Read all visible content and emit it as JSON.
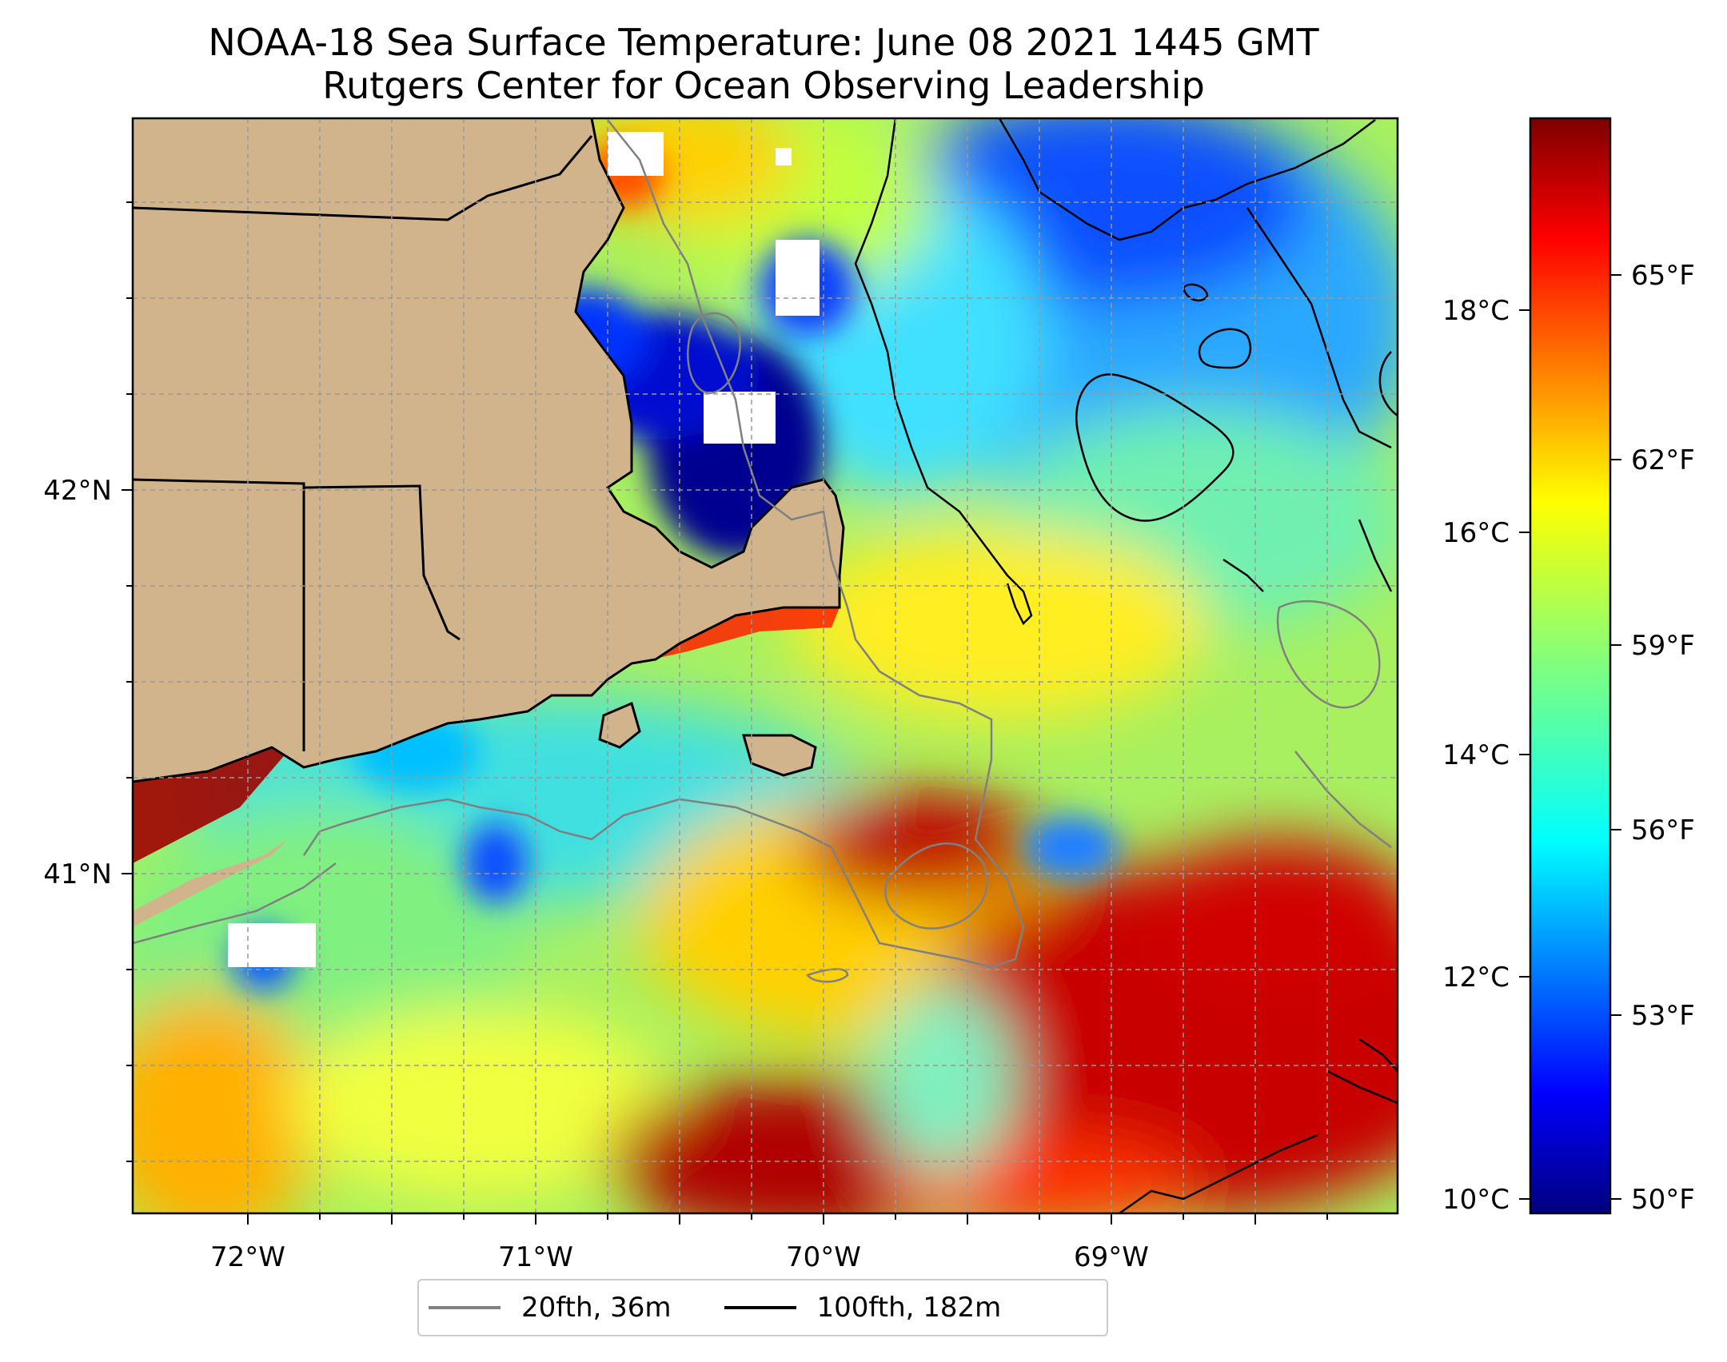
{
  "title": {
    "line1": "NOAA-18 Sea Surface Temperature: June 08 2021 1445 GMT",
    "line2": "Rutgers Center for Ocean Observing Leadership"
  },
  "map": {
    "lon_ticks": [
      "72°W",
      "71°W",
      "70°W",
      "69°W"
    ],
    "lat_ticks": [
      "42°N",
      "41°N"
    ],
    "land_color": "#d2b48c",
    "grid": true
  },
  "colorbar": {
    "celsius_ticks": [
      "18°C",
      "16°C",
      "14°C",
      "12°C",
      "10°C"
    ],
    "fahrenheit_ticks": [
      "65°F",
      "62°F",
      "59°F",
      "56°F",
      "53°F",
      "50°F"
    ],
    "colormap": "jet"
  },
  "legend": {
    "items": [
      {
        "label": "20fth, 36m",
        "color": "#808080"
      },
      {
        "label": "100fth, 182m",
        "color": "#000000"
      }
    ]
  }
}
